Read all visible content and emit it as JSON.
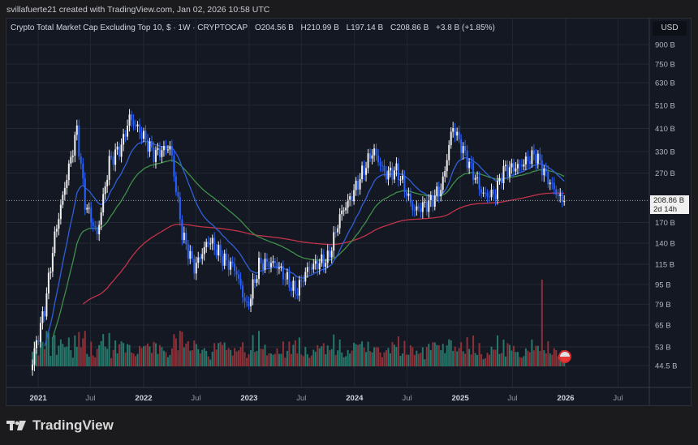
{
  "credit": "svillafuerte21 created with TradingView.com, Jan 02, 2026 10:58 UTC",
  "legend": {
    "symbol": "Crypto Total Market Cap Excluding Top 10, $ · 1W · CRYPTOCAP",
    "open": "O204.56 B",
    "high": "H210.99 B",
    "low": "L197.14 B",
    "close": "C208.86 B",
    "change": "+3.8 B (+1.85%)"
  },
  "currency": "USD",
  "last_price": {
    "value": "208.86 B",
    "countdown": "2d 14h"
  },
  "brand": "TradingView",
  "colors": {
    "background": "#141823",
    "up": "#f0f0f0",
    "down": "#2962ff",
    "volume_up": "#26786b",
    "volume_down": "#8e3138",
    "ma_fast": "#2f5fd8",
    "ma_mid": "#3f8f4a",
    "ma_slow": "#c2344a"
  },
  "chart_data": {
    "type": "candlestick",
    "scale": "log",
    "timeframe": "1W",
    "unit": "B USD",
    "ylim": [
      40,
      1000
    ],
    "y_ticks": [
      "900 B",
      "750 B",
      "630 B",
      "510 B",
      "410 B",
      "330 B",
      "270 B",
      "170 B",
      "140 B",
      "115 B",
      "95 B",
      "79 B",
      "65 B",
      "53 B",
      "44.5 B"
    ],
    "y_tick_values": [
      900,
      750,
      630,
      510,
      410,
      330,
      270,
      170,
      140,
      115,
      95,
      79,
      65,
      53,
      44.5
    ],
    "x_ticks": [
      {
        "label": "2021",
        "date": "2021-01-01",
        "major": true
      },
      {
        "label": "Jul",
        "date": "2021-07-01"
      },
      {
        "label": "2022",
        "date": "2022-01-01",
        "major": true
      },
      {
        "label": "Jul",
        "date": "2022-07-01"
      },
      {
        "label": "2023",
        "date": "2023-01-01",
        "major": true
      },
      {
        "label": "Jul",
        "date": "2023-07-01"
      },
      {
        "label": "2024",
        "date": "2024-01-01",
        "major": true
      },
      {
        "label": "Jul",
        "date": "2024-07-01"
      },
      {
        "label": "2025",
        "date": "2025-01-01",
        "major": true
      },
      {
        "label": "Jul",
        "date": "2025-07-01"
      },
      {
        "label": "2026",
        "date": "2026-01-01",
        "major": true
      },
      {
        "label": "Jul",
        "date": "2026-07-01"
      }
    ],
    "grid": true,
    "approx_close_path": [
      [
        "2020-12-12",
        46.6
      ],
      [
        "2021-01-23",
        76
      ],
      [
        "2021-02-28",
        151
      ],
      [
        "2021-04-03",
        238
      ],
      [
        "2021-05-15",
        405
      ],
      [
        "2021-06-12",
        205
      ],
      [
        "2021-07-24",
        151
      ],
      [
        "2021-09-04",
        301
      ],
      [
        "2021-10-16",
        347
      ],
      [
        "2021-11-13",
        454
      ],
      [
        "2021-12-25",
        390
      ],
      [
        "2022-02-06",
        322
      ],
      [
        "2022-04-03",
        347
      ],
      [
        "2022-05-15",
        151
      ],
      [
        "2022-06-26",
        111
      ],
      [
        "2022-08-15",
        145
      ],
      [
        "2022-10-02",
        121
      ],
      [
        "2022-11-13",
        111
      ],
      [
        "2022-12-25",
        76
      ],
      [
        "2023-02-06",
        116
      ],
      [
        "2023-04-03",
        116
      ],
      [
        "2023-06-12",
        88
      ],
      [
        "2023-07-24",
        111
      ],
      [
        "2023-10-02",
        121
      ],
      [
        "2023-11-13",
        183
      ],
      [
        "2023-12-25",
        221
      ],
      [
        "2024-03-05",
        336
      ],
      [
        "2024-04-16",
        267
      ],
      [
        "2024-05-28",
        277
      ],
      [
        "2024-07-24",
        190
      ],
      [
        "2024-09-18",
        205
      ],
      [
        "2024-10-30",
        238
      ],
      [
        "2024-12-05",
        421
      ],
      [
        "2025-01-23",
        310
      ],
      [
        "2025-03-20",
        221
      ],
      [
        "2025-05-01",
        221
      ],
      [
        "2025-05-29",
        277
      ],
      [
        "2025-07-24",
        288
      ],
      [
        "2025-09-18",
        322
      ],
      [
        "2025-10-30",
        257
      ],
      [
        "2025-12-12",
        213
      ],
      [
        "2025-12-29",
        208.86
      ]
    ],
    "last_close": 208.86
  }
}
